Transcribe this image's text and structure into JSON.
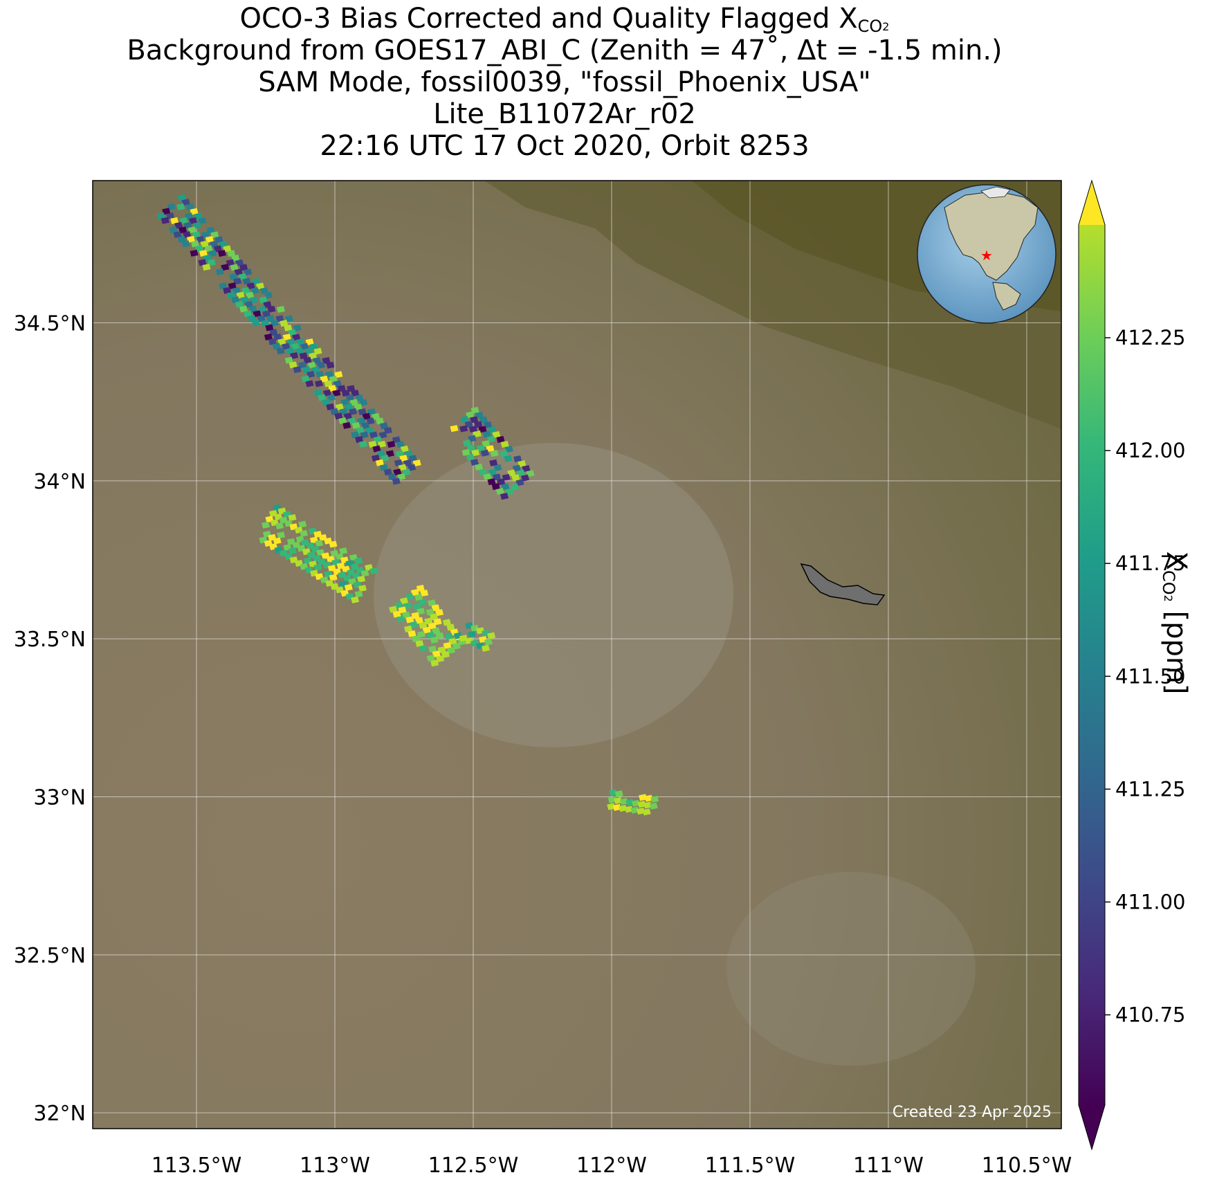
{
  "title": {
    "line1_prefix": "OCO-3 Bias Corrected and Quality Flagged X",
    "line1_sub": "CO",
    "line1_sub2": "2",
    "line2": "Background from GOES17_ABI_C (Zenith = 47˚, Δt = -1.5 min.)",
    "line3": "SAM Mode, fossil0039, \"fossil_Phoenix_USA\"",
    "line4": "Lite_B11072Ar_r02",
    "line5": "22:16 UTC 17 Oct 2020, Orbit 8253"
  },
  "map": {
    "lon_range": [
      -113.875,
      -110.375
    ],
    "lat_range": [
      31.95,
      34.95
    ],
    "lon_ticks": [
      {
        "value": -113.5,
        "label": "113.5°W"
      },
      {
        "value": -113.0,
        "label": "113°W"
      },
      {
        "value": -112.5,
        "label": "112.5°W"
      },
      {
        "value": -112.0,
        "label": "112°W"
      },
      {
        "value": -111.5,
        "label": "111.5°W"
      },
      {
        "value": -111.0,
        "label": "111°W"
      },
      {
        "value": -110.5,
        "label": "110.5°W"
      }
    ],
    "lat_ticks": [
      {
        "value": 34.5,
        "label": "34.5°N"
      },
      {
        "value": 34.0,
        "label": "34°N"
      },
      {
        "value": 33.5,
        "label": "33.5°N"
      },
      {
        "value": 33.0,
        "label": "33°N"
      },
      {
        "value": 32.5,
        "label": "32.5°N"
      },
      {
        "value": 32.0,
        "label": "32°N"
      }
    ],
    "credit": "Created 23 Apr 2025",
    "target_marker_color": "#ff0000",
    "soundings": [
      {
        "lon": [
          -113.6,
          -112.75
        ],
        "lat": [
          34.86,
          34.02
        ],
        "xco2_range": [
          410.6,
          412.4
        ]
      },
      {
        "lon": [
          -112.55,
          -112.35
        ],
        "lat": [
          34.18,
          33.98
        ],
        "xco2_range": [
          410.6,
          412.4
        ]
      },
      {
        "lon": [
          -113.25,
          -112.9
        ],
        "lat": [
          33.86,
          33.66
        ],
        "xco2_range": [
          411.7,
          412.45
        ]
      },
      {
        "lon": [
          -112.75,
          -112.6
        ],
        "lat": [
          33.62,
          33.45
        ],
        "xco2_range": [
          411.8,
          412.45
        ]
      },
      {
        "lon": [
          -112.55,
          -112.45
        ],
        "lat": [
          33.52,
          33.48
        ],
        "xco2_range": [
          411.6,
          412.4
        ]
      },
      {
        "lon": [
          -112.0,
          -111.85
        ],
        "lat": [
          32.98,
          32.96
        ],
        "xco2_range": [
          411.9,
          412.4
        ]
      }
    ]
  },
  "colorbar": {
    "label_prefix": "X",
    "label_sub": "CO",
    "label_sub2": "2",
    "label_suffix": " [ppm]",
    "range": [
      410.55,
      412.5
    ],
    "ticks": [
      {
        "value": 412.25,
        "label": "412.25"
      },
      {
        "value": 412.0,
        "label": "412.00"
      },
      {
        "value": 411.75,
        "label": "411.75"
      },
      {
        "value": 411.5,
        "label": "411.50"
      },
      {
        "value": 411.25,
        "label": "411.25"
      },
      {
        "value": 411.0,
        "label": "411.00"
      },
      {
        "value": 410.75,
        "label": "410.75"
      }
    ],
    "colormap": "viridis",
    "extend": "both"
  }
}
